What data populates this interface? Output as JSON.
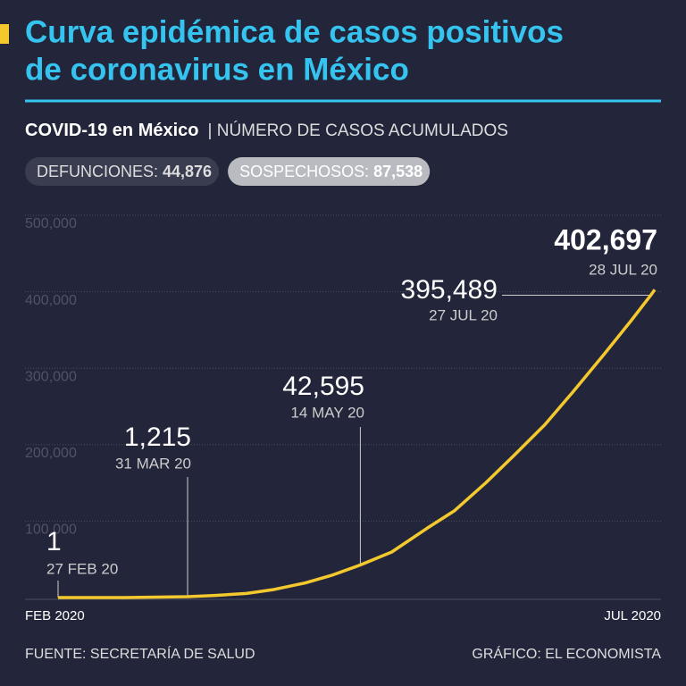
{
  "chart_data": {
    "type": "line",
    "title": [
      "Curva epidémica de casos positivos",
      "de coronavirus en México"
    ],
    "subtitle": {
      "bold": "COVID-19 en México",
      "rest": "| NÚMERO DE CASOS ACUMULADOS"
    },
    "stats": [
      {
        "label": "DEFUNCIONES:",
        "value": "44,876"
      },
      {
        "label": "SOSPECHOSOS:",
        "value": "87,538"
      }
    ],
    "x": [
      "2020-02-27",
      "2020-03-15",
      "2020-03-31",
      "2020-04-07",
      "2020-04-15",
      "2020-04-22",
      "2020-04-30",
      "2020-05-07",
      "2020-05-14",
      "2020-05-22",
      "2020-05-31",
      "2020-06-07",
      "2020-06-15",
      "2020-06-22",
      "2020-06-30",
      "2020-07-07",
      "2020-07-15",
      "2020-07-22",
      "2020-07-27",
      "2020-07-28"
    ],
    "values": [
      1,
      41,
      1215,
      2785,
      5399,
      10544,
      19224,
      29616,
      42595,
      59567,
      90664,
      113619,
      150264,
      185122,
      226089,
      268008,
      317635,
      362274,
      395489,
      402697
    ],
    "value_labels": [
      "1",
      null,
      "1,215",
      null,
      null,
      null,
      null,
      null,
      "42,595",
      null,
      null,
      null,
      null,
      null,
      null,
      null,
      null,
      null,
      "395,489",
      "402,697"
    ],
    "date_labels": [
      "27 FEB 20",
      null,
      "31 MAR 20",
      null,
      null,
      null,
      null,
      null,
      "14 MAY 20",
      null,
      null,
      null,
      null,
      null,
      null,
      null,
      null,
      null,
      "27 JUL 20",
      "28 JUL 20"
    ],
    "color": "#f4c92e",
    "xlim": [
      "2020-02-27",
      "2020-07-28"
    ],
    "x_axis_labels": [
      "FEB 2020",
      "JUL 2020"
    ],
    "ylim": [
      0,
      500000
    ],
    "yticks": [
      {
        "value": 100000,
        "label": "100,000"
      },
      {
        "value": 200000,
        "label": "200,000"
      },
      {
        "value": 300000,
        "label": "300,000"
      },
      {
        "value": 400000,
        "label": "400,000"
      },
      {
        "value": 500000,
        "label": "500,000"
      }
    ],
    "grid": true,
    "source": "FUENTE: SECRETARÍA DE SALUD",
    "credit": "GRÁFICO: EL ECONOMISTA"
  }
}
